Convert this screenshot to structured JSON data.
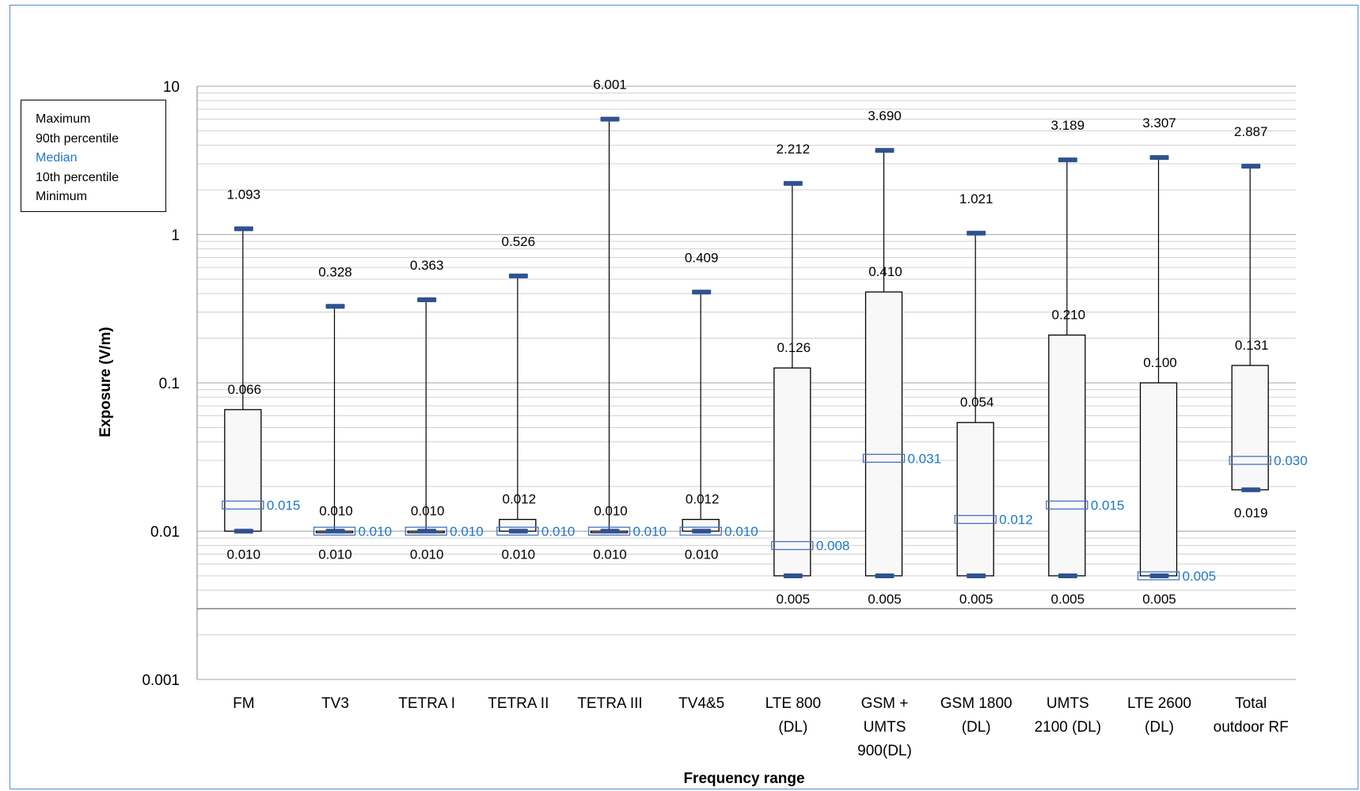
{
  "chart_data": {
    "type": "box",
    "ylabel": "Exposure (V/m)",
    "xlabel": "Frequency range",
    "yscale": "log",
    "ylim": [
      0.001,
      10
    ],
    "y_ticks": [
      "0.001",
      "0.01",
      "0.1",
      "1",
      "10"
    ],
    "grid": true,
    "legend": {
      "position": "top-left",
      "items": [
        "Maximum",
        "90th percentile",
        "Median",
        "10th percentile",
        "Minimum"
      ],
      "median_color": "#1f77c4"
    },
    "colors": {
      "box_fill": "#f8f8f8",
      "marker": "#2f528f",
      "median": "#4472c4",
      "median_text": "#1f77c4"
    },
    "categories": [
      {
        "label": [
          "FM"
        ],
        "max": 1.093,
        "p90": 0.066,
        "median": 0.015,
        "p10": 0.01,
        "min": 0.01,
        "max_label": "1.093",
        "p90_label": "0.066",
        "median_label": "0.015",
        "min_label": "0.010"
      },
      {
        "label": [
          "TV3"
        ],
        "max": 0.328,
        "p90": 0.01,
        "median": 0.01,
        "p10": 0.01,
        "min": 0.01,
        "max_label": "0.328",
        "p90_label": "0.010",
        "median_label": "0.010",
        "min_label": "0.010"
      },
      {
        "label": [
          "TETRA I"
        ],
        "max": 0.363,
        "p90": 0.01,
        "median": 0.01,
        "p10": 0.01,
        "min": 0.01,
        "max_label": "0.363",
        "p90_label": "0.010",
        "median_label": "0.010",
        "min_label": "0.010"
      },
      {
        "label": [
          "TETRA II"
        ],
        "max": 0.526,
        "p90": 0.012,
        "median": 0.01,
        "p10": 0.01,
        "min": 0.01,
        "max_label": "0.526",
        "p90_label": "0.012",
        "median_label": "0.010",
        "min_label": "0.010"
      },
      {
        "label": [
          "TETRA III"
        ],
        "max": 6.001,
        "p90": 0.01,
        "median": 0.01,
        "p10": 0.01,
        "min": 0.01,
        "max_label": "6.001",
        "p90_label": "0.010",
        "median_label": "0.010",
        "min_label": "0.010"
      },
      {
        "label": [
          "TV4&5"
        ],
        "max": 0.409,
        "p90": 0.012,
        "median": 0.01,
        "p10": 0.01,
        "min": 0.01,
        "max_label": "0.409",
        "p90_label": "0.012",
        "median_label": "0.010",
        "min_label": "0.010"
      },
      {
        "label": [
          "LTE 800",
          "(DL)"
        ],
        "max": 2.212,
        "p90": 0.126,
        "median": 0.008,
        "p10": 0.005,
        "min": 0.005,
        "max_label": "2.212",
        "p90_label": "0.126",
        "median_label": "0.008",
        "min_label": "0.005"
      },
      {
        "label": [
          "GSM +",
          "UMTS",
          "900(DL)"
        ],
        "max": 3.69,
        "p90": 0.41,
        "median": 0.031,
        "p10": 0.005,
        "min": 0.005,
        "max_label": "3.690",
        "p90_label": "0.410",
        "median_label": "0.031",
        "min_label": "0.005"
      },
      {
        "label": [
          "GSM 1800",
          "(DL)"
        ],
        "max": 1.021,
        "p90": 0.054,
        "median": 0.012,
        "p10": 0.005,
        "min": 0.005,
        "max_label": "1.021",
        "p90_label": "0.054",
        "median_label": "0.012",
        "min_label": "0.005"
      },
      {
        "label": [
          "UMTS",
          "2100 (DL)"
        ],
        "max": 3.189,
        "p90": 0.21,
        "median": 0.015,
        "p10": 0.005,
        "min": 0.005,
        "max_label": "3.189",
        "p90_label": "0.210",
        "median_label": "0.015",
        "min_label": "0.005"
      },
      {
        "label": [
          "LTE 2600",
          "(DL)"
        ],
        "max": 3.307,
        "p90": 0.1,
        "median": 0.005,
        "p10": 0.005,
        "min": 0.005,
        "max_label": "3.307",
        "p90_label": "0.100",
        "median_label": "0.005",
        "min_label": "0.005"
      },
      {
        "label": [
          "Total",
          "outdoor RF"
        ],
        "max": 2.887,
        "p90": 0.131,
        "median": 0.03,
        "p10": 0.019,
        "min": 0.019,
        "max_label": "2.887",
        "p90_label": "0.131",
        "median_label": "0.030",
        "min_label": "0.019"
      }
    ]
  }
}
